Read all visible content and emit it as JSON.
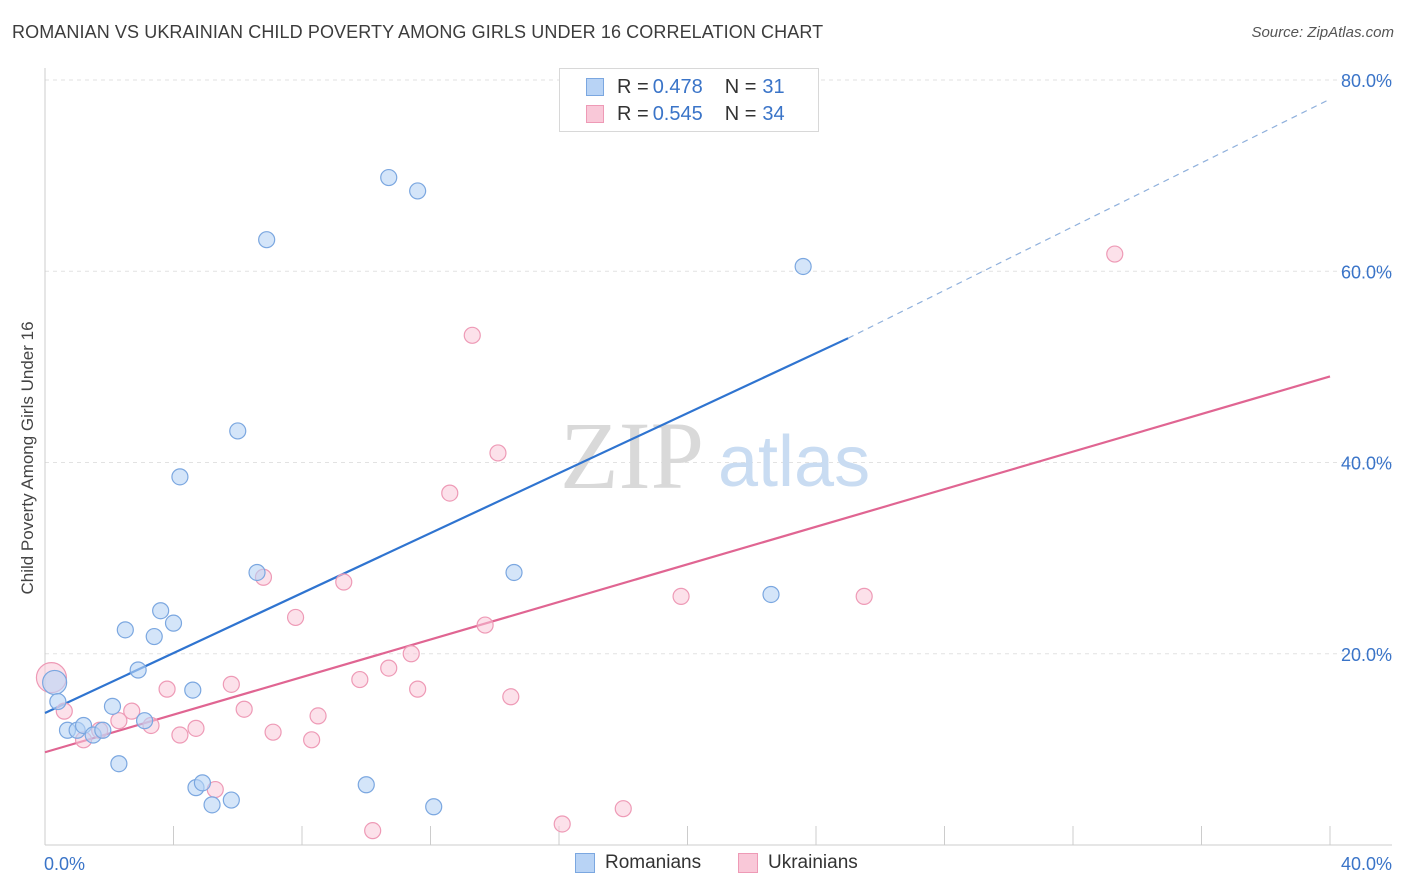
{
  "header": {
    "title": "ROMANIAN VS UKRAINIAN CHILD POVERTY AMONG GIRLS UNDER 16 CORRELATION CHART",
    "source": "Source: ZipAtlas.com"
  },
  "watermark": {
    "zip": "ZIP",
    "atlas": "atlas"
  },
  "legend": {
    "romanians": {
      "r_label": "R = ",
      "r_value": "0.478",
      "n_label": "N = ",
      "n_value": "31"
    },
    "ukrainians": {
      "r_label": "R = ",
      "r_value": "0.545",
      "n_label": "N = ",
      "n_value": "34"
    }
  },
  "bottom_legend": {
    "romanians": "Romanians",
    "ukrainians": "Ukrainians"
  },
  "colors": {
    "romanians_fill": "#b8d3f5",
    "romanians_stroke": "#7ba7e0",
    "romanians_line": "#2f74d0",
    "ukrainians_fill": "#f9c8d8",
    "ukrainians_stroke": "#ee9ab6",
    "ukrainians_line": "#e06592",
    "tick_label": "#3a74c8",
    "grid": "#e2e2e2"
  },
  "chart_data": {
    "type": "scatter",
    "title": "ROMANIAN VS UKRAINIAN CHILD POVERTY AMONG GIRLS UNDER 16 CORRELATION CHART",
    "xlabel": "",
    "ylabel": "Child Poverty Among Girls Under 16",
    "xlim": [
      0,
      40
    ],
    "ylim": [
      0,
      80
    ],
    "x_tick_labels": [
      "0.0%",
      "40.0%"
    ],
    "y_ticks": [
      20,
      40,
      60,
      80
    ],
    "y_tick_labels": [
      "20.0%",
      "40.0%",
      "60.0%",
      "80.0%"
    ],
    "grid": true,
    "legend_position": "top-center",
    "series": [
      {
        "name": "Romanians",
        "points": [
          [
            0.3,
            17.0
          ],
          [
            0.4,
            15.0
          ],
          [
            0.7,
            12.0
          ],
          [
            1.0,
            12.0
          ],
          [
            1.2,
            12.5
          ],
          [
            1.5,
            11.5
          ],
          [
            1.8,
            12.0
          ],
          [
            2.1,
            14.5
          ],
          [
            2.3,
            8.5
          ],
          [
            2.5,
            22.5
          ],
          [
            2.9,
            18.3
          ],
          [
            3.1,
            13.0
          ],
          [
            3.4,
            21.8
          ],
          [
            3.6,
            24.5
          ],
          [
            4.0,
            23.2
          ],
          [
            4.2,
            38.5
          ],
          [
            4.6,
            16.2
          ],
          [
            4.7,
            6.0
          ],
          [
            4.9,
            6.5
          ],
          [
            5.2,
            4.2
          ],
          [
            5.8,
            4.7
          ],
          [
            6.0,
            43.3
          ],
          [
            6.6,
            28.5
          ],
          [
            6.9,
            63.3
          ],
          [
            10.0,
            6.3
          ],
          [
            10.7,
            69.8
          ],
          [
            11.6,
            68.4
          ],
          [
            12.1,
            4.0
          ],
          [
            14.6,
            28.5
          ],
          [
            22.6,
            26.2
          ],
          [
            23.6,
            60.5
          ]
        ],
        "trend": {
          "x": [
            0,
            25
          ],
          "y": [
            13.8,
            53.0
          ],
          "dashed_extension": {
            "x": [
              25,
              40
            ],
            "y": [
              53.0,
              78.0
            ]
          }
        }
      },
      {
        "name": "Ukrainians",
        "points": [
          [
            0.2,
            17.5
          ],
          [
            0.6,
            14.0
          ],
          [
            1.2,
            11.0
          ],
          [
            1.7,
            12.0
          ],
          [
            2.3,
            13.0
          ],
          [
            2.7,
            14.0
          ],
          [
            3.3,
            12.5
          ],
          [
            3.8,
            16.3
          ],
          [
            4.2,
            11.5
          ],
          [
            4.7,
            12.2
          ],
          [
            5.3,
            5.8
          ],
          [
            5.8,
            16.8
          ],
          [
            6.2,
            14.2
          ],
          [
            6.8,
            28.0
          ],
          [
            7.1,
            11.8
          ],
          [
            7.8,
            23.8
          ],
          [
            8.3,
            11.0
          ],
          [
            8.5,
            13.5
          ],
          [
            9.3,
            27.5
          ],
          [
            9.8,
            17.3
          ],
          [
            10.2,
            1.5
          ],
          [
            10.7,
            18.5
          ],
          [
            11.4,
            20.0
          ],
          [
            11.6,
            16.3
          ],
          [
            12.6,
            36.8
          ],
          [
            13.3,
            53.3
          ],
          [
            13.7,
            23.0
          ],
          [
            14.1,
            41.0
          ],
          [
            14.5,
            15.5
          ],
          [
            16.1,
            2.2
          ],
          [
            18.0,
            3.8
          ],
          [
            19.8,
            26.0
          ],
          [
            25.5,
            26.0
          ],
          [
            33.3,
            61.8
          ]
        ],
        "trend": {
          "x": [
            0,
            40
          ],
          "y": [
            9.7,
            49.0
          ]
        }
      }
    ]
  }
}
